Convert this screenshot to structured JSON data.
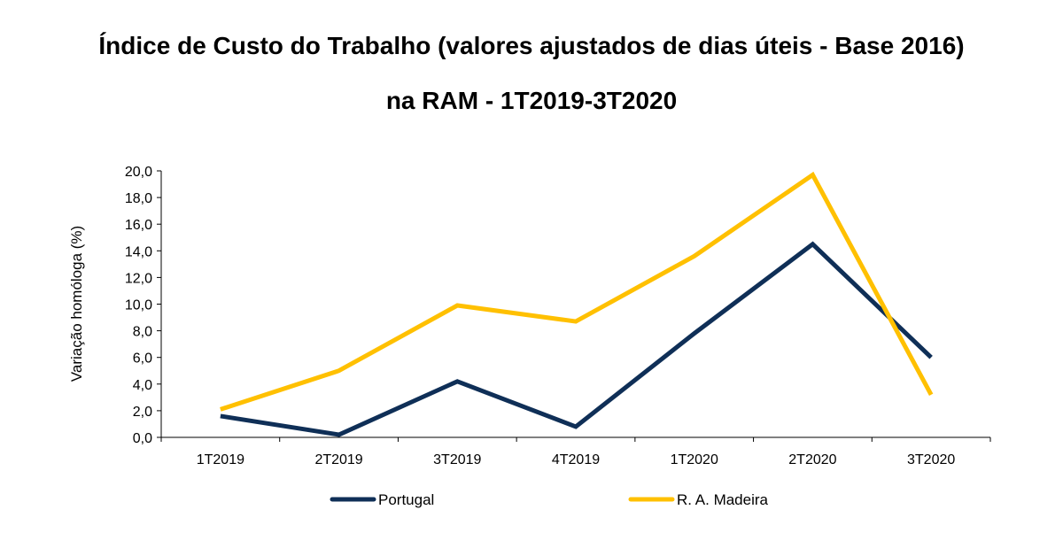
{
  "chart_data": {
    "type": "line",
    "title_line1": "Índice de Custo do Trabalho (valores ajustados de dias úteis - Base 2016)",
    "title_line2": "na RAM - 1T2019-3T2020",
    "ylabel": "Variação homóloga (%)",
    "xlabel": "",
    "categories": [
      "1T2019",
      "2T2019",
      "3T2019",
      "4T2019",
      "1T2020",
      "2T2020",
      "3T2020"
    ],
    "yticks": [
      "0,0",
      "2,0",
      "4,0",
      "6,0",
      "8,0",
      "10,0",
      "12,0",
      "14,0",
      "16,0",
      "18,0",
      "20,0"
    ],
    "ylim": [
      0,
      20
    ],
    "grid": false,
    "legend_position": "bottom",
    "series": [
      {
        "name": "Portugal",
        "color": "#0f2f57",
        "values": [
          1.6,
          0.2,
          4.2,
          0.8,
          7.8,
          14.5,
          6.0
        ]
      },
      {
        "name": "R. A. Madeira",
        "color": "#ffc000",
        "values": [
          2.1,
          5.0,
          9.9,
          8.7,
          13.6,
          19.7,
          3.2
        ]
      }
    ]
  }
}
